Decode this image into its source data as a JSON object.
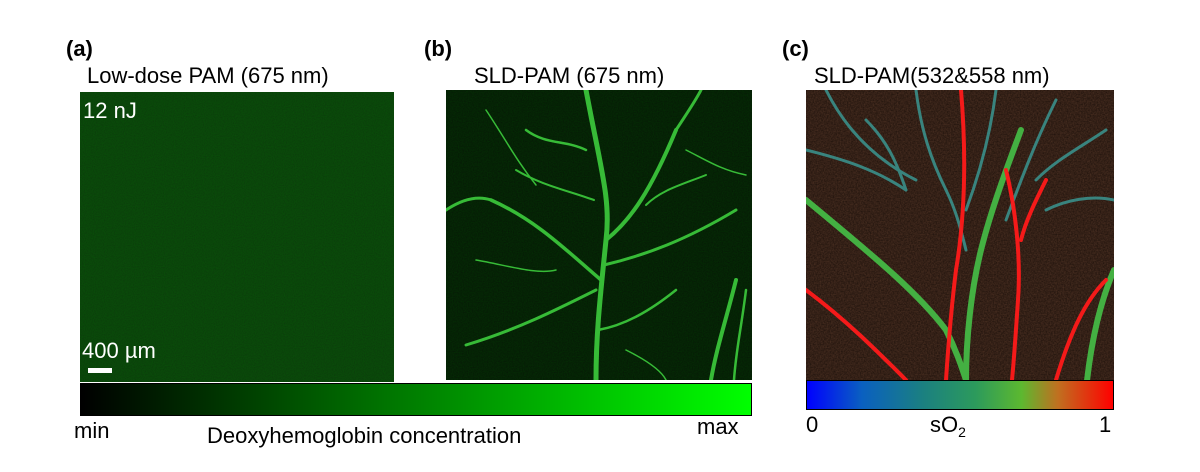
{
  "panels": [
    {
      "letter": "(a)",
      "title": "Low-dose PAM (675 nm)",
      "energy": "12 nJ",
      "scale_bar": "400 µm"
    },
    {
      "letter": "(b)",
      "title": "SLD-PAM (675 nm)"
    },
    {
      "letter": "(c)",
      "title": "SLD-PAM(532&558 nm)"
    }
  ],
  "colorbar_deoxy": {
    "min_label": "min",
    "max_label": "max",
    "caption": "Deoxyhemoglobin concentration",
    "colors": [
      "#000000",
      "#00ff00"
    ]
  },
  "colorbar_so2": {
    "min_label": "0",
    "max_label": "1",
    "caption_main": "sO",
    "caption_sub": "2",
    "colors": [
      "#0000ff",
      "#008080",
      "#40a040",
      "#ff0000"
    ]
  }
}
